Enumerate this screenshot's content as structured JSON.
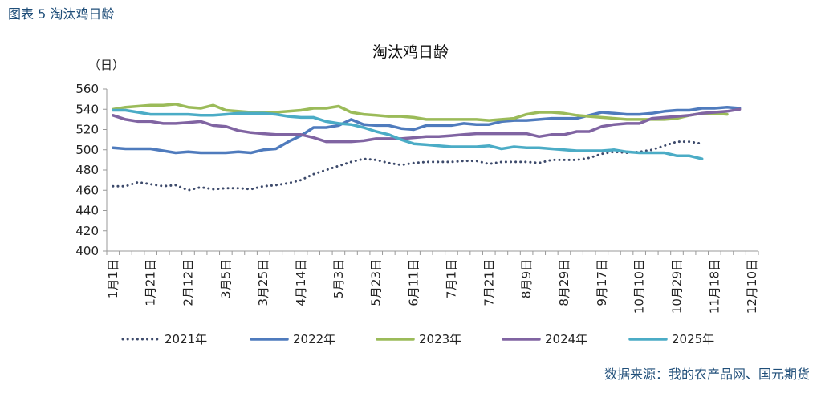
{
  "figure_label": "图表 5 淘汰鸡日龄",
  "source": "数据来源：我的农产品网、国元期货",
  "unit": "（日）",
  "colors": {
    "2021": "#3d4a6b",
    "2022": "#4f7bbd",
    "2023": "#9bbb59",
    "2024": "#8064a2",
    "2025": "#4bacc6"
  },
  "chart_data": {
    "type": "line",
    "title": "淘汰鸡日龄",
    "xlabel": "",
    "ylabel": "（日）",
    "ylim": [
      400,
      560
    ],
    "yticks": [
      400,
      420,
      440,
      460,
      480,
      500,
      520,
      540,
      560
    ],
    "x_tick_labels": [
      "1月1日",
      "1月21日",
      "2月12日",
      "3月5日",
      "3月25日",
      "4月14日",
      "5月3日",
      "5月23日",
      "6月11日",
      "7月1日",
      "7月21日",
      "8月9日",
      "8月29日",
      "9月17日",
      "10月10日",
      "10月29日",
      "11月18日",
      "12月10日"
    ],
    "grid": false,
    "legend_position": "bottom",
    "series": [
      {
        "name": "2021年",
        "style": "dotted",
        "color_key": "2021",
        "values": [
          464,
          464,
          468,
          466,
          464,
          465,
          460,
          463,
          461,
          462,
          462,
          461,
          464,
          465,
          467,
          470,
          476,
          480,
          484,
          488,
          491,
          490,
          487,
          485,
          487,
          488,
          488,
          488,
          489,
          489,
          486,
          488,
          488,
          488,
          487,
          490,
          490,
          490,
          492,
          496,
          498,
          497,
          498,
          500,
          504,
          508,
          508,
          506
        ]
      },
      {
        "name": "2022年",
        "style": "solid",
        "color_key": "2022",
        "values": [
          502,
          501,
          501,
          501,
          499,
          497,
          498,
          497,
          497,
          497,
          498,
          497,
          500,
          501,
          508,
          514,
          522,
          522,
          524,
          530,
          525,
          524,
          524,
          521,
          520,
          524,
          524,
          524,
          526,
          525,
          525,
          528,
          529,
          529,
          530,
          531,
          531,
          531,
          534,
          537,
          536,
          535,
          535,
          536,
          538,
          539,
          539,
          541,
          541,
          542,
          541
        ]
      },
      {
        "name": "2023年",
        "style": "solid",
        "color_key": "2023",
        "values": [
          540,
          542,
          543,
          544,
          544,
          545,
          542,
          541,
          544,
          539,
          538,
          537,
          537,
          537,
          538,
          539,
          541,
          541,
          543,
          537,
          535,
          534,
          533,
          533,
          532,
          530,
          530,
          530,
          530,
          530,
          529,
          530,
          531,
          535,
          537,
          537,
          536,
          534,
          533,
          532,
          531,
          530,
          530,
          530,
          530,
          531,
          534,
          536,
          536,
          535
        ]
      },
      {
        "name": "2024年",
        "style": "solid",
        "color_key": "2024",
        "values": [
          534,
          530,
          528,
          528,
          526,
          526,
          527,
          528,
          524,
          523,
          519,
          517,
          516,
          515,
          515,
          515,
          512,
          508,
          508,
          508,
          509,
          511,
          511,
          511,
          512,
          513,
          513,
          514,
          515,
          516,
          516,
          516,
          516,
          516,
          513,
          515,
          515,
          518,
          518,
          523,
          525,
          526,
          526,
          531,
          532,
          533,
          534,
          536,
          537,
          538,
          540
        ]
      },
      {
        "name": "2025年",
        "style": "solid",
        "color_key": "2025",
        "values": [
          539,
          539,
          537,
          535,
          535,
          535,
          535,
          534,
          534,
          535,
          536,
          536,
          536,
          535,
          533,
          532,
          532,
          528,
          526,
          525,
          522,
          518,
          515,
          510,
          506,
          505,
          504,
          503,
          503,
          503,
          504,
          501,
          503,
          502,
          502,
          501,
          500,
          499,
          499,
          499,
          500,
          498,
          497,
          497,
          497,
          494,
          494,
          491
        ]
      }
    ]
  }
}
